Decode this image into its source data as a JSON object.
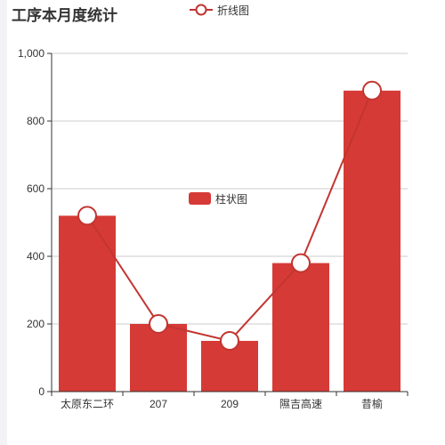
{
  "title": "工序本月度统计",
  "colors": {
    "bar": "#d63a36",
    "line": "#c23531",
    "axis": "#333333",
    "grid": "#cccccc",
    "marker_fill": "#ffffff"
  },
  "chart_data": {
    "type": "bar",
    "categories": [
      "太原东二环",
      "207",
      "209",
      "隰吉高速",
      "昔榆"
    ],
    "series": [
      {
        "name": "柱状图",
        "type": "bar",
        "values": [
          520,
          200,
          150,
          380,
          890
        ]
      },
      {
        "name": "折线图",
        "type": "line",
        "values": [
          520,
          200,
          150,
          380,
          890
        ]
      }
    ],
    "title": "工序本月度统计",
    "xlabel": "",
    "ylabel": "",
    "ylim": [
      0,
      1000
    ],
    "yticks": [
      0,
      200,
      400,
      600,
      800,
      1000
    ],
    "ytick_labels": [
      "0",
      "200",
      "400",
      "600",
      "800",
      "1,000"
    ],
    "grid": true,
    "legend": {
      "line_entry": "top",
      "bar_entry": "center"
    }
  }
}
